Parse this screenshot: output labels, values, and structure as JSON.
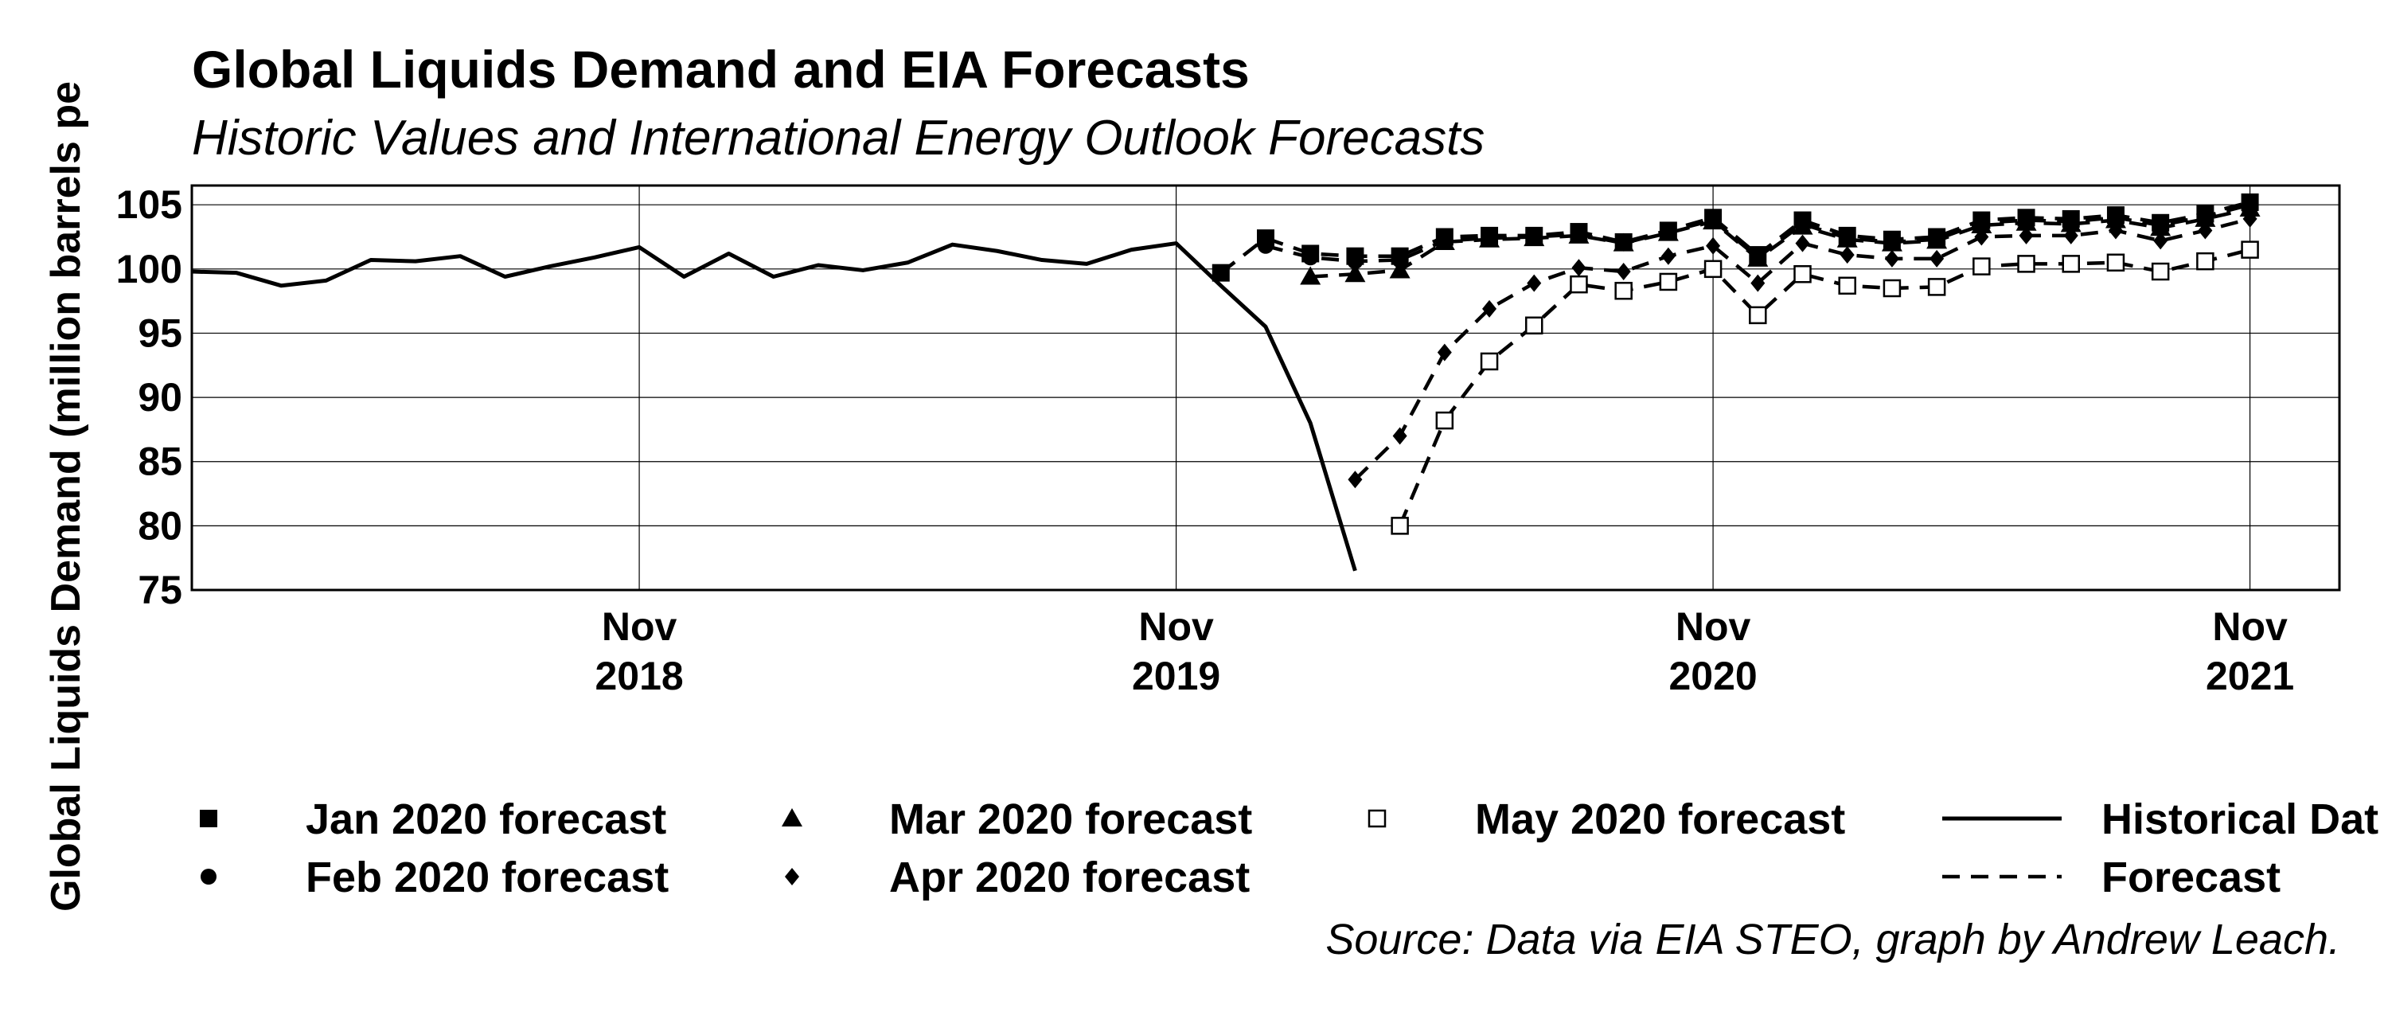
{
  "chart_data": {
    "type": "line",
    "title": "Global Liquids Demand and EIA Forecasts",
    "subtitle": "Historic Values and International Energy Outlook Forecasts",
    "ylabel": "Global Liquids Demand (million barrels pe",
    "xlabel": "",
    "ylim": [
      75,
      106.5
    ],
    "yticks": [
      75,
      80,
      85,
      90,
      95,
      100,
      105
    ],
    "xlim": [
      "2018-01",
      "2021-12"
    ],
    "xticks": [
      {
        "date": "2018-11",
        "label_month": "Nov",
        "label_year": "2018"
      },
      {
        "date": "2019-11",
        "label_month": "Nov",
        "label_year": "2019"
      },
      {
        "date": "2020-11",
        "label_month": "Nov",
        "label_year": "2020"
      },
      {
        "date": "2021-11",
        "label_month": "Nov",
        "label_year": "2021"
      }
    ],
    "grid": true,
    "series": [
      {
        "name": "Historical Data",
        "style": "solid",
        "marker": "none",
        "points": [
          [
            "2018-01",
            99.8
          ],
          [
            "2018-02",
            99.7
          ],
          [
            "2018-03",
            98.7
          ],
          [
            "2018-04",
            99.1
          ],
          [
            "2018-05",
            100.7
          ],
          [
            "2018-06",
            100.6
          ],
          [
            "2018-07",
            101.0
          ],
          [
            "2018-08",
            99.4
          ],
          [
            "2018-09",
            100.2
          ],
          [
            "2018-10",
            100.9
          ],
          [
            "2018-11",
            101.7
          ],
          [
            "2018-12",
            99.4
          ],
          [
            "2019-01",
            101.2
          ],
          [
            "2019-02",
            99.4
          ],
          [
            "2019-03",
            100.3
          ],
          [
            "2019-04",
            99.9
          ],
          [
            "2019-05",
            100.5
          ],
          [
            "2019-06",
            101.9
          ],
          [
            "2019-07",
            101.4
          ],
          [
            "2019-08",
            100.7
          ],
          [
            "2019-09",
            100.4
          ],
          [
            "2019-10",
            101.5
          ],
          [
            "2019-11",
            102.0
          ],
          [
            "2019-12",
            98.7
          ],
          [
            "2020-01",
            95.5
          ],
          [
            "2020-02",
            88.0
          ],
          [
            "2020-03",
            76.5
          ]
        ]
      },
      {
        "name": "Jan 2020 forecast",
        "style": "dashed",
        "marker": "filled-square",
        "points": [
          [
            "2019-12",
            99.7
          ],
          [
            "2020-01",
            102.4
          ],
          [
            "2020-02",
            101.2
          ],
          [
            "2020-03",
            101.0
          ],
          [
            "2020-04",
            101.0
          ],
          [
            "2020-05",
            102.5
          ],
          [
            "2020-06",
            102.6
          ],
          [
            "2020-07",
            102.6
          ],
          [
            "2020-08",
            102.9
          ],
          [
            "2020-09",
            102.1
          ],
          [
            "2020-10",
            103.0
          ],
          [
            "2020-11",
            104.0
          ],
          [
            "2020-12",
            101.1
          ],
          [
            "2021-01",
            103.8
          ],
          [
            "2021-02",
            102.6
          ],
          [
            "2021-03",
            102.3
          ],
          [
            "2021-04",
            102.5
          ],
          [
            "2021-05",
            103.8
          ],
          [
            "2021-06",
            104.0
          ],
          [
            "2021-07",
            103.9
          ],
          [
            "2021-08",
            104.2
          ],
          [
            "2021-09",
            103.6
          ],
          [
            "2021-10",
            104.3
          ],
          [
            "2021-11",
            105.2
          ]
        ]
      },
      {
        "name": "Feb 2020 forecast",
        "style": "dashed",
        "marker": "filled-circle",
        "points": [
          [
            "2020-01",
            101.8
          ],
          [
            "2020-02",
            100.9
          ],
          [
            "2020-03",
            100.6
          ],
          [
            "2020-04",
            100.7
          ],
          [
            "2020-05",
            102.2
          ],
          [
            "2020-06",
            102.4
          ],
          [
            "2020-07",
            102.5
          ],
          [
            "2020-08",
            102.7
          ],
          [
            "2020-09",
            102.0
          ],
          [
            "2020-10",
            102.9
          ],
          [
            "2020-11",
            103.8
          ],
          [
            "2020-12",
            100.9
          ],
          [
            "2021-01",
            103.5
          ],
          [
            "2021-02",
            102.4
          ],
          [
            "2021-03",
            102.1
          ],
          [
            "2021-04",
            102.3
          ],
          [
            "2021-05",
            103.6
          ],
          [
            "2021-06",
            103.8
          ],
          [
            "2021-07",
            103.7
          ],
          [
            "2021-08",
            104.0
          ],
          [
            "2021-09",
            103.4
          ],
          [
            "2021-10",
            104.1
          ],
          [
            "2021-11",
            105.0
          ]
        ]
      },
      {
        "name": "Mar 2020 forecast",
        "style": "dashed",
        "marker": "filled-triangle",
        "points": [
          [
            "2020-02",
            99.4
          ],
          [
            "2020-03",
            99.6
          ],
          [
            "2020-04",
            99.9
          ],
          [
            "2020-05",
            102.1
          ],
          [
            "2020-06",
            102.3
          ],
          [
            "2020-07",
            102.4
          ],
          [
            "2020-08",
            102.6
          ],
          [
            "2020-09",
            102.0
          ],
          [
            "2020-10",
            102.8
          ],
          [
            "2020-11",
            103.7
          ],
          [
            "2020-12",
            100.8
          ],
          [
            "2021-01",
            103.3
          ],
          [
            "2021-02",
            102.3
          ],
          [
            "2021-03",
            102.0
          ],
          [
            "2021-04",
            102.2
          ],
          [
            "2021-05",
            103.4
          ],
          [
            "2021-06",
            103.6
          ],
          [
            "2021-07",
            103.5
          ],
          [
            "2021-08",
            103.8
          ],
          [
            "2021-09",
            103.2
          ],
          [
            "2021-10",
            103.9
          ],
          [
            "2021-11",
            104.7
          ]
        ]
      },
      {
        "name": "Apr 2020 forecast",
        "style": "dashed",
        "marker": "filled-diamond",
        "points": [
          [
            "2020-03",
            83.6
          ],
          [
            "2020-04",
            87.0
          ],
          [
            "2020-05",
            93.5
          ],
          [
            "2020-06",
            96.9
          ],
          [
            "2020-07",
            98.9
          ],
          [
            "2020-08",
            100.1
          ],
          [
            "2020-09",
            99.8
          ],
          [
            "2020-10",
            101.0
          ],
          [
            "2020-11",
            101.8
          ],
          [
            "2020-12",
            98.9
          ],
          [
            "2021-01",
            102.0
          ],
          [
            "2021-02",
            101.1
          ],
          [
            "2021-03",
            100.8
          ],
          [
            "2021-04",
            100.8
          ],
          [
            "2021-05",
            102.5
          ],
          [
            "2021-06",
            102.6
          ],
          [
            "2021-07",
            102.6
          ],
          [
            "2021-08",
            103.0
          ],
          [
            "2021-09",
            102.2
          ],
          [
            "2021-10",
            103.0
          ],
          [
            "2021-11",
            103.9
          ]
        ]
      },
      {
        "name": "May 2020 forecast",
        "style": "dashed",
        "marker": "open-square",
        "points": [
          [
            "2020-04",
            80.0
          ],
          [
            "2020-05",
            88.2
          ],
          [
            "2020-06",
            92.8
          ],
          [
            "2020-07",
            95.6
          ],
          [
            "2020-08",
            98.8
          ],
          [
            "2020-09",
            98.3
          ],
          [
            "2020-10",
            99.0
          ],
          [
            "2020-11",
            100.0
          ],
          [
            "2020-12",
            96.4
          ],
          [
            "2021-01",
            99.6
          ],
          [
            "2021-02",
            98.7
          ],
          [
            "2021-03",
            98.5
          ],
          [
            "2021-04",
            98.6
          ],
          [
            "2021-05",
            100.2
          ],
          [
            "2021-06",
            100.4
          ],
          [
            "2021-07",
            100.4
          ],
          [
            "2021-08",
            100.5
          ],
          [
            "2021-09",
            99.8
          ],
          [
            "2021-10",
            100.6
          ],
          [
            "2021-11",
            101.5
          ]
        ]
      }
    ],
    "legend": {
      "placement": "bottom",
      "entries": [
        {
          "label": "Jan 2020 forecast",
          "marker": "filled-square"
        },
        {
          "label": "Feb 2020 forecast",
          "marker": "filled-circle"
        },
        {
          "label": "Mar 2020 forecast",
          "marker": "filled-triangle"
        },
        {
          "label": "Apr 2020 forecast",
          "marker": "filled-diamond"
        },
        {
          "label": "May 2020 forecast",
          "marker": "open-square"
        },
        {
          "label": "Historical Dat",
          "marker": "solid-line"
        },
        {
          "label": "Forecast",
          "marker": "dashed-line"
        }
      ]
    },
    "source": "Source: Data via EIA STEO, graph by Andrew Leach."
  }
}
